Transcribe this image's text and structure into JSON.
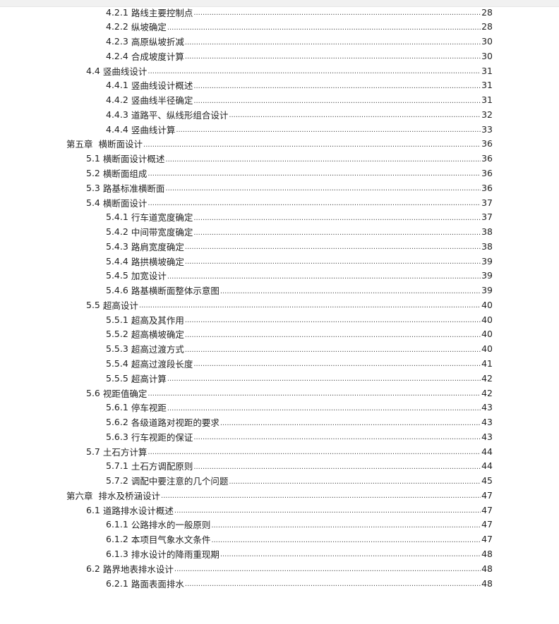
{
  "toc": [
    {
      "level": 3,
      "num": "4.2.1",
      "title": "路线主要控制点",
      "page": "28"
    },
    {
      "level": 3,
      "num": "4.2.2",
      "title": "纵坡确定",
      "page": "28"
    },
    {
      "level": 3,
      "num": "4.2.3",
      "title": "高原纵坡折减",
      "page": "30"
    },
    {
      "level": 3,
      "num": "4.2.4",
      "title": "合成坡度计算",
      "page": "30"
    },
    {
      "level": 2,
      "num": "4.4",
      "title": "竖曲线设计",
      "page": "31"
    },
    {
      "level": 3,
      "num": "4.4.1",
      "title": "竖曲线设计概述",
      "page": "31"
    },
    {
      "level": 3,
      "num": "4.4.2",
      "title": "竖曲线半径确定",
      "page": "31"
    },
    {
      "level": 3,
      "num": "4.4.3",
      "title": "道路平、纵线形组合设计",
      "page": "32"
    },
    {
      "level": 3,
      "num": "4.4.4",
      "title": "竖曲线计算",
      "page": "33"
    },
    {
      "level": 1,
      "num": "第五章",
      "title": "横断面设计",
      "page": "36"
    },
    {
      "level": 2,
      "num": "5.1",
      "title": "横断面设计概述",
      "page": "36"
    },
    {
      "level": 2,
      "num": "5.2",
      "title": "横断面组成",
      "page": "36"
    },
    {
      "level": 2,
      "num": "5.3",
      "title": "路基标准横断面",
      "page": "36"
    },
    {
      "level": 2,
      "num": "5.4",
      "title": "横断面设计",
      "page": "37"
    },
    {
      "level": 3,
      "num": "5.4.1",
      "title": "行车道宽度确定",
      "page": "37"
    },
    {
      "level": 3,
      "num": "5.4.2",
      "title": "中间带宽度确定",
      "page": "38"
    },
    {
      "level": 3,
      "num": "5.4.3",
      "title": "路肩宽度确定",
      "page": "38"
    },
    {
      "level": 3,
      "num": "5.4.4",
      "title": "路拱横坡确定",
      "page": "39"
    },
    {
      "level": 3,
      "num": "5.4.5",
      "title": "加宽设计",
      "page": "39"
    },
    {
      "level": 3,
      "num": "5.4.6",
      "title": "路基横断面整体示意图",
      "page": "39"
    },
    {
      "level": 2,
      "num": "5.5",
      "title": "超高设计",
      "page": "40"
    },
    {
      "level": 3,
      "num": "5.5.1",
      "title": "超高及其作用",
      "page": "40"
    },
    {
      "level": 3,
      "num": "5.5.2",
      "title": "超高横坡确定",
      "page": "40"
    },
    {
      "level": 3,
      "num": "5.5.3",
      "title": "超高过渡方式",
      "page": "40"
    },
    {
      "level": 3,
      "num": "5.5.4",
      "title": "超高过渡段长度",
      "page": "41"
    },
    {
      "level": 3,
      "num": "5.5.5",
      "title": "超高计算",
      "page": "42"
    },
    {
      "level": 2,
      "num": "5.6",
      "title": "视距值确定",
      "page": "42"
    },
    {
      "level": 3,
      "num": "5.6.1",
      "title": "停车视距",
      "page": "43"
    },
    {
      "level": 3,
      "num": "5.6.2",
      "title": "各级道路对视距的要求",
      "page": "43"
    },
    {
      "level": 3,
      "num": "5.6.3",
      "title": "行车视距的保证",
      "page": "43"
    },
    {
      "level": 2,
      "num": "5.7",
      "title": "土石方计算",
      "page": "44"
    },
    {
      "level": 3,
      "num": "5.7.1",
      "title": "土石方调配原则",
      "page": "44"
    },
    {
      "level": 3,
      "num": "5.7.2",
      "title": "调配中要注意的几个问题",
      "page": "45"
    },
    {
      "level": 1,
      "num": "第六章",
      "title": "排水及桥涵设计",
      "page": "47"
    },
    {
      "level": 2,
      "num": "6.1",
      "title": "道路排水设计概述",
      "page": "47"
    },
    {
      "level": 3,
      "num": "6.1.1",
      "title": "公路排水的一般原则",
      "page": "47"
    },
    {
      "level": 3,
      "num": "6.1.2",
      "title": "本项目气象水文条件",
      "page": "47"
    },
    {
      "level": 3,
      "num": "6.1.3",
      "title": "排水设计的降雨重现期",
      "page": "48"
    },
    {
      "level": 2,
      "num": "6.2",
      "title": "路界地表排水设计",
      "page": "48"
    },
    {
      "level": 3,
      "num": "6.2.1",
      "title": "路面表面排水",
      "page": "48"
    }
  ]
}
